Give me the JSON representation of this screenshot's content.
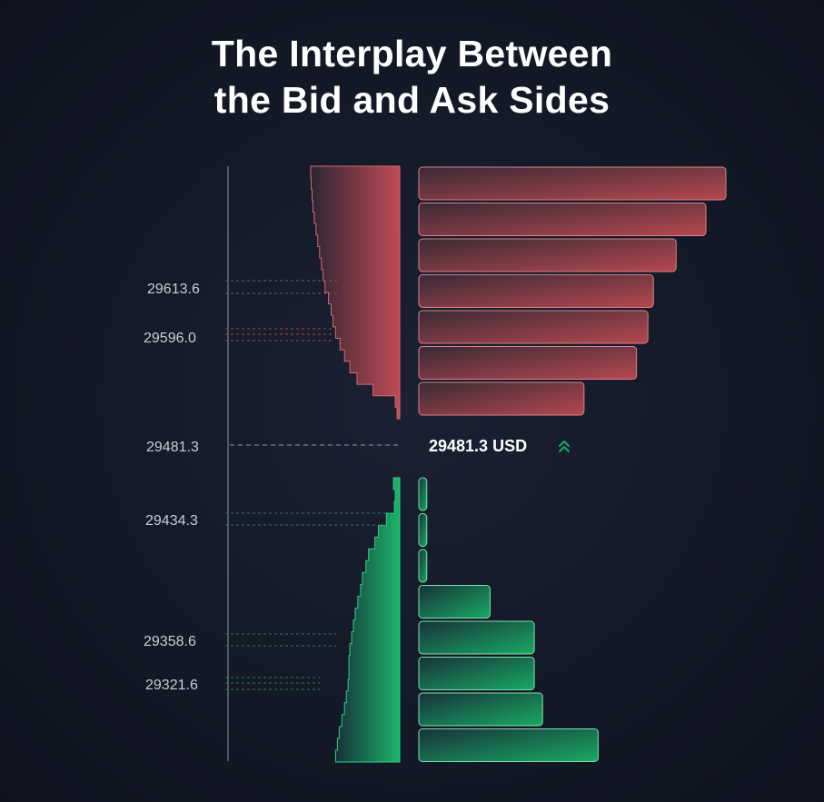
{
  "title": {
    "line1": "The Interplay Between",
    "line2": "the Bid and Ask Sides"
  },
  "colors": {
    "ask": "#b5484f",
    "bid": "#19a963",
    "axis": "#8e93a0",
    "background": "#151a28"
  },
  "chart_data": {
    "type": "bar",
    "title": "The Interplay Between the Bid and Ask Sides",
    "mid_price": {
      "value": 29481.3,
      "label": "29481.3",
      "text": "29481.3 USD",
      "icon": "double-chevron-up-icon"
    },
    "tick_labels": {
      "ask": [
        "29613.6",
        "29596.0"
      ],
      "bid": [
        "29434.3",
        "29358.6",
        "29321.6"
      ]
    },
    "ask_bars": [
      100,
      93.5,
      83.8,
      76.4,
      74.6,
      70.9,
      53.8
    ],
    "bid_bars": [
      2.6,
      2.6,
      2.6,
      23.2,
      37.6,
      37.6,
      40.3,
      58.4
    ],
    "ask_depth_profile": [
      0,
      0.5,
      1.5,
      2.5,
      4,
      6,
      8,
      10,
      12,
      14,
      16,
      20,
      23,
      25,
      28,
      33,
      38,
      44,
      52,
      70,
      95,
      97
    ],
    "bid_depth_profile": [
      93,
      95,
      94,
      85,
      76,
      72,
      65,
      62,
      58,
      56,
      53,
      50,
      48,
      46,
      44,
      43,
      43,
      42,
      40,
      38,
      35,
      32,
      30,
      28
    ]
  }
}
